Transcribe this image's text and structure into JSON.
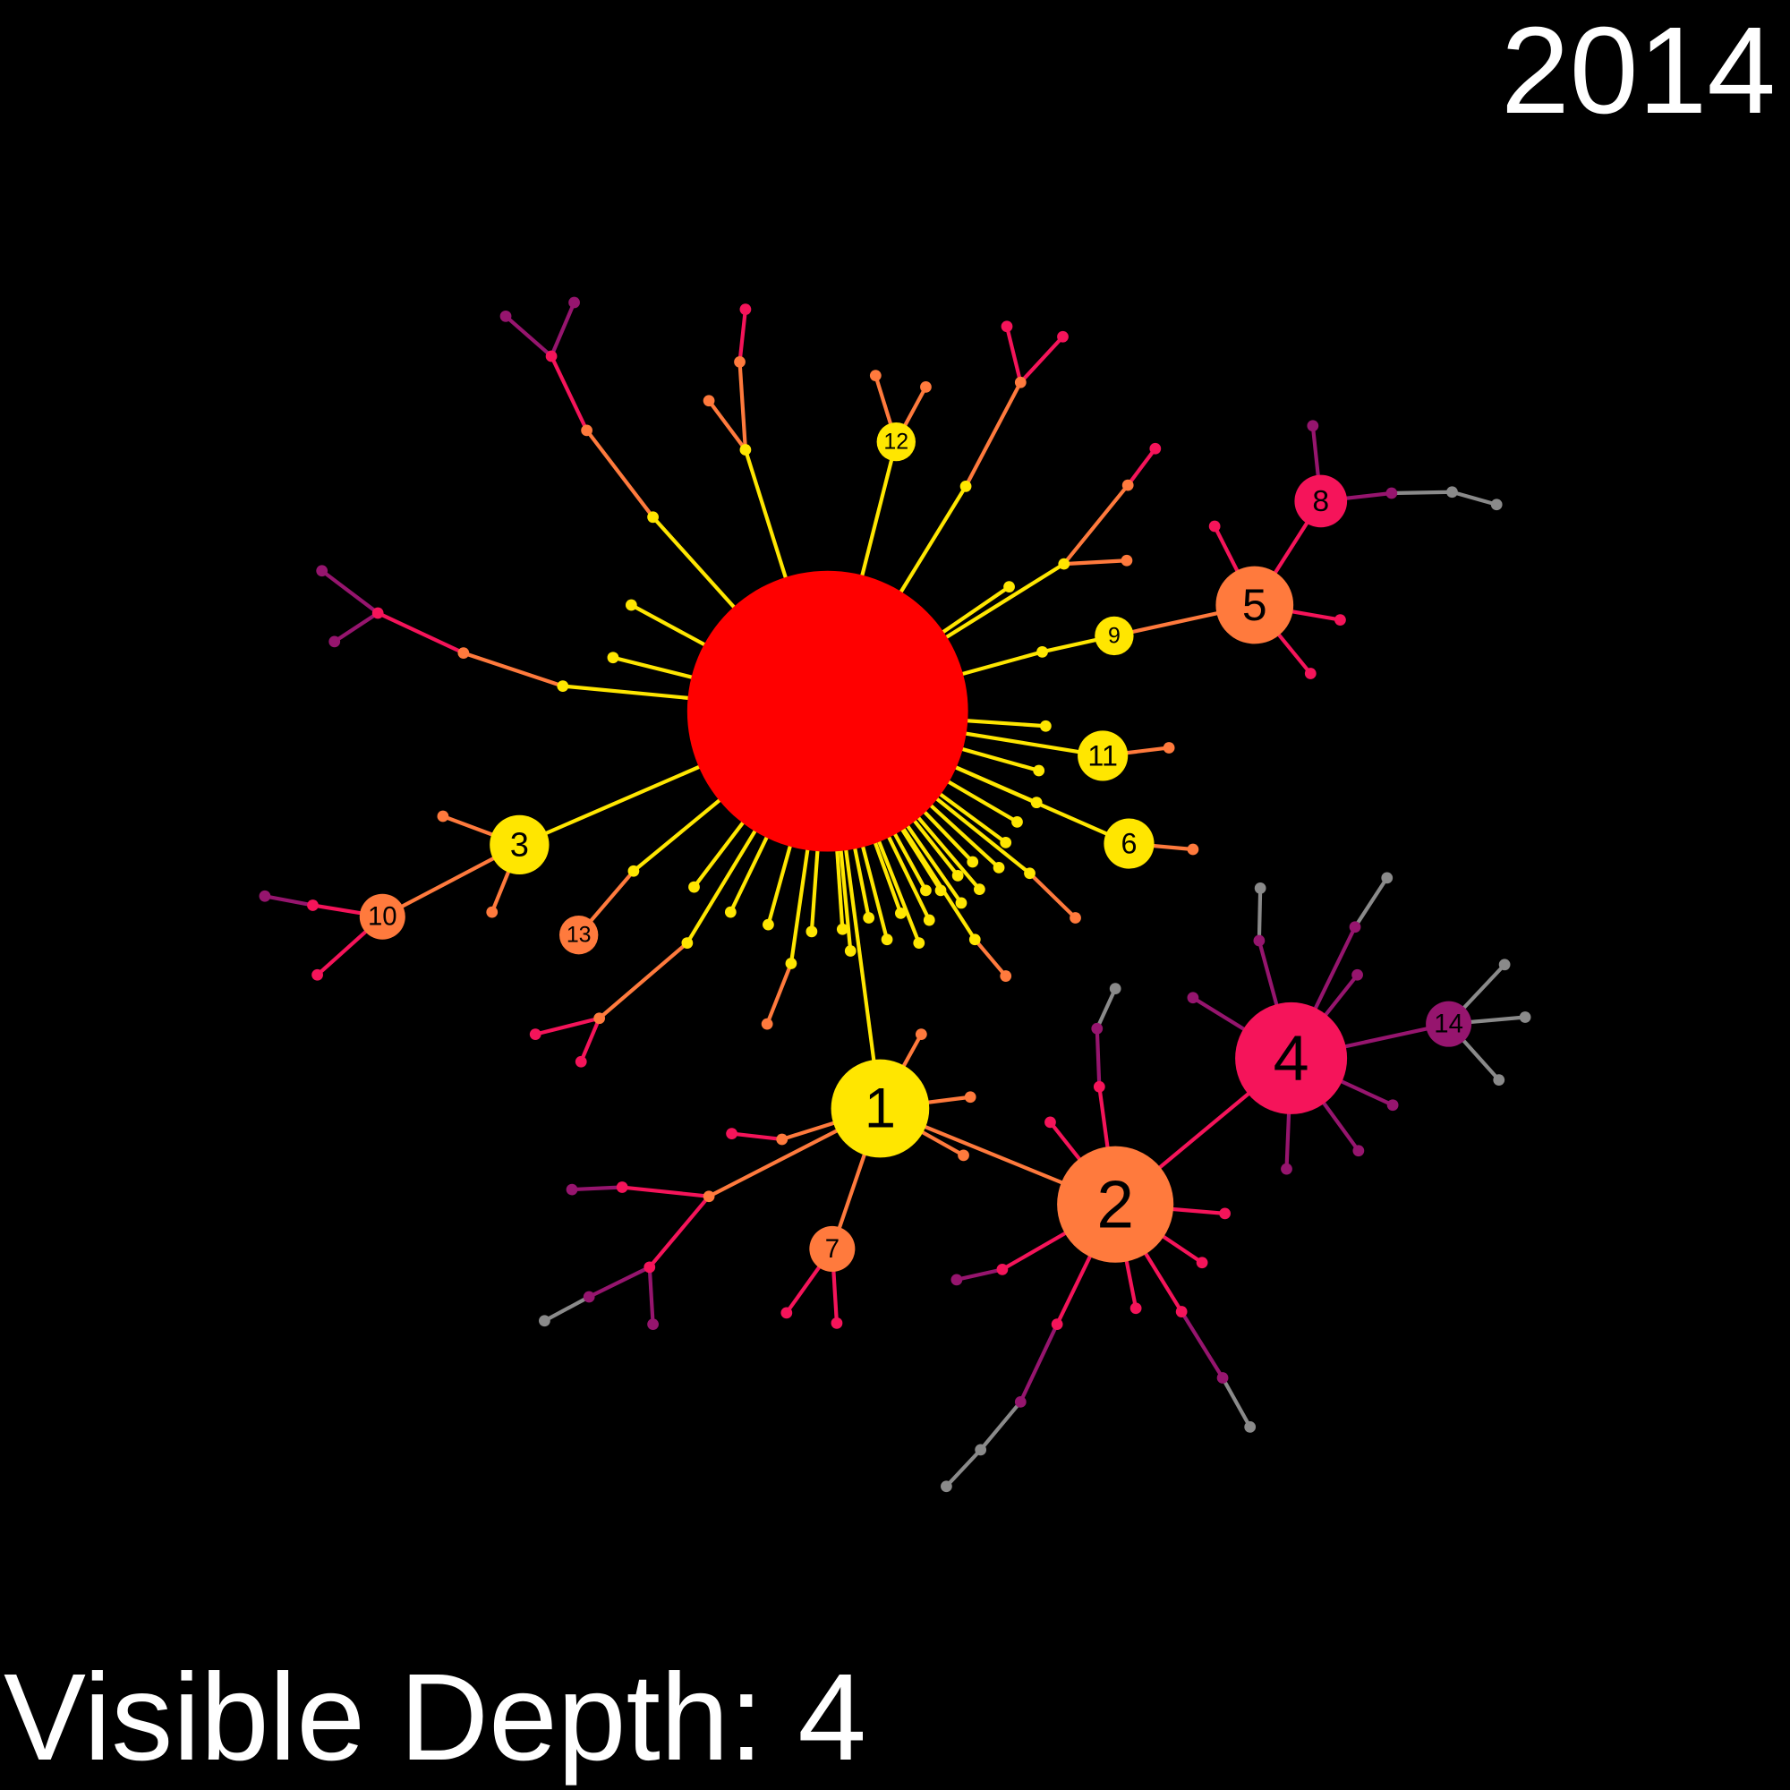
{
  "year_label": "2014",
  "depth_label": "Visible Depth: 4",
  "colors": {
    "background": "#000000",
    "root": "#ff0000",
    "level1": "#ffe600",
    "level2": "#ff7a3d",
    "level3": "#f5145a",
    "level4": "#96156e",
    "level5": "#8a8a8a"
  },
  "labeled_nodes": [
    "1",
    "2",
    "3",
    "4",
    "5",
    "6",
    "7",
    "8",
    "9",
    "10",
    "11",
    "12",
    "13",
    "14"
  ]
}
